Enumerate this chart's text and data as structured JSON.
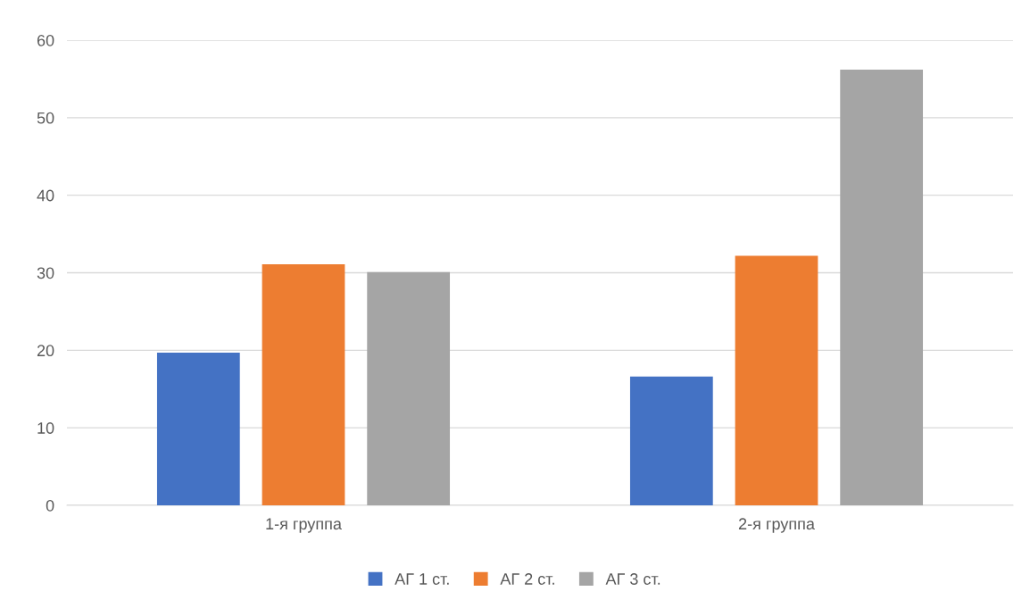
{
  "chart_data": {
    "type": "bar",
    "categories": [
      "1-я группа",
      "2-я группа"
    ],
    "series": [
      {
        "name": "АГ 1 ст.",
        "color": "#4472c4",
        "values": [
          19.7,
          16.6
        ]
      },
      {
        "name": "АГ 2 ст.",
        "color": "#ed7d31",
        "values": [
          31.1,
          32.2
        ]
      },
      {
        "name": "АГ 3 ст.",
        "color": "#a5a5a5",
        "values": [
          30.1,
          56.2
        ]
      }
    ],
    "ylim": [
      0,
      60
    ],
    "yticks": [
      0,
      10,
      20,
      30,
      40,
      50,
      60
    ],
    "grid": "y",
    "legend": "bottom"
  }
}
